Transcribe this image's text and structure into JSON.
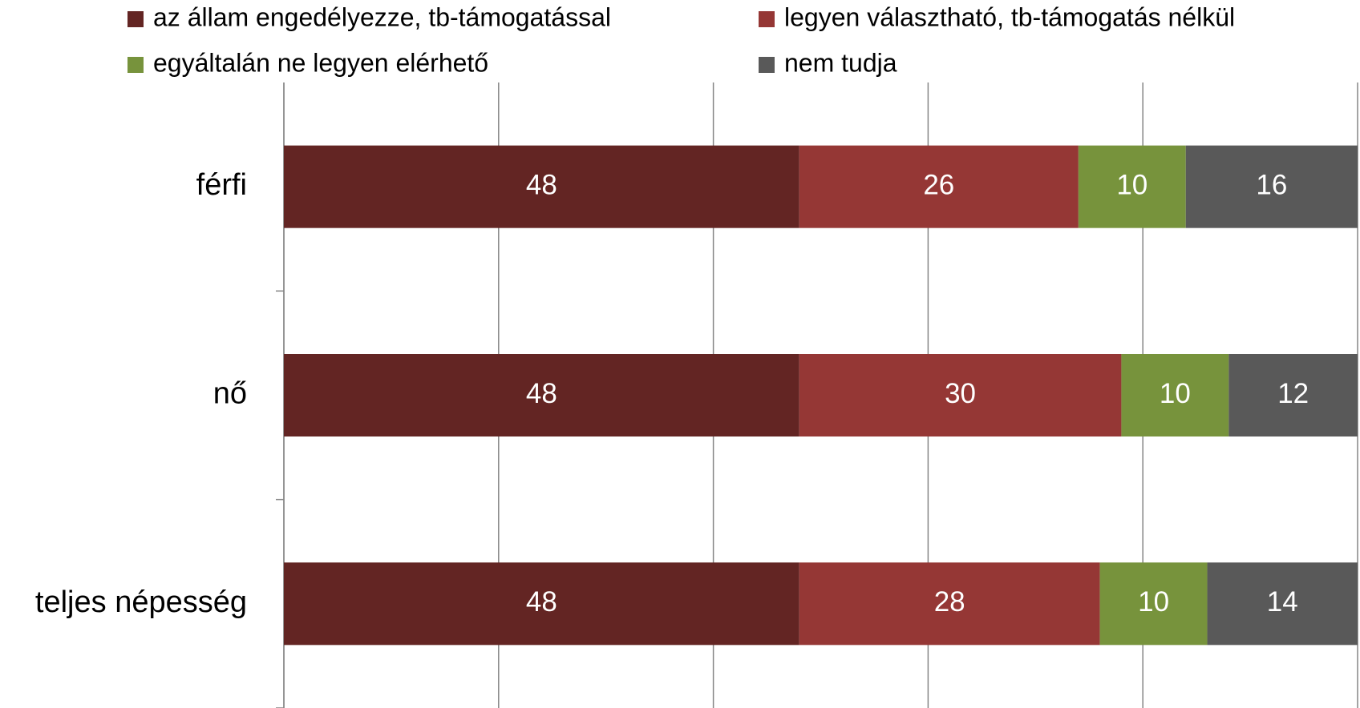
{
  "chart_data": {
    "type": "stacked_bar_horizontal",
    "categories": [
      "férfi",
      "nő",
      "teljes népesség"
    ],
    "series": [
      {
        "name": "az állam engedélyezze, tb-támogatással",
        "color": "#632523",
        "values": [
          48,
          48,
          48
        ]
      },
      {
        "name": "legyen választható, tb-támogatás nélkül",
        "color": "#953735",
        "values": [
          26,
          30,
          28
        ]
      },
      {
        "name": "egyáltalán ne legyen elérhető",
        "color": "#77933c",
        "values": [
          10,
          10,
          10
        ]
      },
      {
        "name": "nem tudja",
        "color": "#595959",
        "values": [
          16,
          12,
          14
        ]
      }
    ],
    "xlim": [
      0,
      100
    ],
    "xticks": [
      0,
      20,
      40,
      60,
      80,
      100
    ],
    "grid": true
  }
}
